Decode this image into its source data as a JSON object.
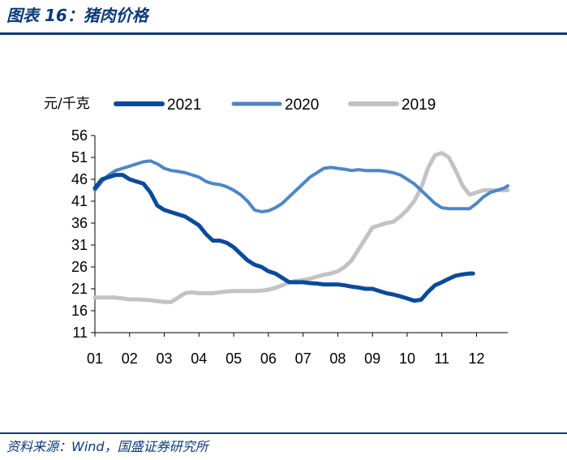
{
  "header": {
    "title": "图表 16：猪肉价格"
  },
  "footer": {
    "source": "资料来源：Wind，国盛证券研究所"
  },
  "chart_data": {
    "type": "line",
    "title": "猪肉价格",
    "unit_label": "元/千克",
    "xlabel": "",
    "ylabel": "",
    "x_ticks": [
      "01",
      "02",
      "03",
      "04",
      "05",
      "06",
      "07",
      "08",
      "09",
      "10",
      "11",
      "12"
    ],
    "y_ticks": [
      11,
      16,
      21,
      26,
      31,
      36,
      41,
      46,
      51,
      56
    ],
    "xlim": [
      1,
      12.9
    ],
    "ylim": [
      11,
      56
    ],
    "legend_position": "top",
    "grid": false,
    "series": [
      {
        "name": "2021",
        "color": "#0b4a9b",
        "width": 5,
        "x": [
          1.0,
          1.2,
          1.4,
          1.6,
          1.8,
          2.0,
          2.2,
          2.4,
          2.6,
          2.8,
          3.0,
          3.2,
          3.4,
          3.6,
          3.8,
          4.0,
          4.2,
          4.4,
          4.6,
          4.8,
          5.0,
          5.2,
          5.4,
          5.6,
          5.8,
          6.0,
          6.2,
          6.4,
          6.6,
          6.8,
          7.0,
          7.2,
          7.4,
          7.6,
          7.8,
          8.0,
          8.2,
          8.4,
          8.6,
          8.8,
          9.0,
          9.2,
          9.4,
          9.6,
          9.8,
          10.0,
          10.2,
          10.4,
          10.6,
          10.8,
          11.0,
          11.2,
          11.4,
          11.6,
          11.8,
          11.9
        ],
        "values": [
          44.0,
          46.0,
          46.5,
          47.0,
          47.0,
          46.0,
          45.5,
          45.0,
          43.0,
          40.0,
          39.0,
          38.5,
          38.0,
          37.5,
          36.5,
          35.5,
          33.5,
          32.0,
          32.0,
          31.5,
          30.5,
          29.0,
          27.5,
          26.5,
          26.0,
          25.0,
          24.5,
          23.5,
          22.5,
          22.5,
          22.5,
          22.3,
          22.2,
          22.0,
          22.0,
          22.0,
          21.8,
          21.5,
          21.3,
          21.0,
          21.0,
          20.5,
          20.0,
          19.7,
          19.3,
          18.8,
          18.3,
          18.5,
          20.3,
          21.8,
          22.5,
          23.3,
          24.0,
          24.3,
          24.5,
          24.5
        ]
      },
      {
        "name": "2020",
        "color": "#4f86c6",
        "width": 4,
        "x": [
          1.0,
          1.2,
          1.4,
          1.6,
          1.8,
          2.0,
          2.2,
          2.4,
          2.6,
          2.8,
          3.0,
          3.2,
          3.4,
          3.6,
          3.8,
          4.0,
          4.2,
          4.4,
          4.6,
          4.8,
          5.0,
          5.2,
          5.4,
          5.6,
          5.8,
          6.0,
          6.2,
          6.4,
          6.6,
          6.8,
          7.0,
          7.2,
          7.4,
          7.6,
          7.8,
          8.0,
          8.2,
          8.4,
          8.6,
          8.8,
          9.0,
          9.2,
          9.4,
          9.6,
          9.8,
          10.0,
          10.2,
          10.4,
          10.6,
          10.8,
          11.0,
          11.2,
          11.4,
          11.6,
          11.8,
          12.0,
          12.2,
          12.4,
          12.6,
          12.8,
          12.9
        ],
        "values": [
          43.5,
          45.5,
          47.0,
          48.0,
          48.5,
          49.0,
          49.5,
          50.0,
          50.2,
          49.5,
          48.5,
          48.0,
          47.8,
          47.5,
          47.0,
          46.5,
          45.5,
          45.0,
          44.8,
          44.3,
          43.5,
          42.5,
          41.0,
          39.0,
          38.6,
          38.8,
          39.5,
          40.5,
          42.0,
          43.5,
          45.0,
          46.5,
          47.5,
          48.5,
          48.7,
          48.5,
          48.3,
          48.0,
          48.2,
          48.0,
          48.0,
          48.0,
          47.8,
          47.5,
          47.0,
          46.0,
          45.0,
          43.5,
          42.0,
          40.5,
          39.5,
          39.3,
          39.3,
          39.3,
          39.3,
          40.5,
          42.0,
          43.0,
          43.5,
          44.0,
          44.5
        ]
      },
      {
        "name": "2019",
        "color": "#c3c3c3",
        "width": 5,
        "x": [
          1.0,
          1.2,
          1.4,
          1.6,
          1.8,
          2.0,
          2.2,
          2.4,
          2.6,
          2.8,
          3.0,
          3.2,
          3.4,
          3.6,
          3.8,
          4.0,
          4.2,
          4.4,
          4.6,
          4.8,
          5.0,
          5.2,
          5.4,
          5.6,
          5.8,
          6.0,
          6.2,
          6.4,
          6.6,
          6.8,
          7.0,
          7.2,
          7.4,
          7.6,
          7.8,
          8.0,
          8.2,
          8.4,
          8.6,
          8.8,
          9.0,
          9.2,
          9.4,
          9.6,
          9.8,
          10.0,
          10.2,
          10.4,
          10.6,
          10.8,
          11.0,
          11.2,
          11.4,
          11.6,
          11.8,
          12.0,
          12.2,
          12.4,
          12.6,
          12.8,
          12.9
        ],
        "values": [
          19.0,
          19.0,
          19.0,
          19.0,
          18.8,
          18.6,
          18.6,
          18.5,
          18.4,
          18.2,
          18.0,
          18.0,
          19.0,
          20.0,
          20.2,
          20.0,
          20.0,
          20.0,
          20.2,
          20.4,
          20.5,
          20.5,
          20.5,
          20.5,
          20.6,
          20.8,
          21.2,
          21.8,
          22.5,
          22.8,
          23.0,
          23.3,
          23.8,
          24.2,
          24.5,
          25.0,
          26.0,
          27.5,
          30.0,
          32.5,
          35.0,
          35.5,
          36.0,
          36.3,
          37.5,
          39.0,
          41.0,
          44.0,
          48.5,
          51.5,
          52.0,
          51.0,
          48.0,
          44.5,
          42.5,
          43.0,
          43.5,
          43.5,
          43.5,
          43.5,
          43.5
        ]
      }
    ]
  }
}
